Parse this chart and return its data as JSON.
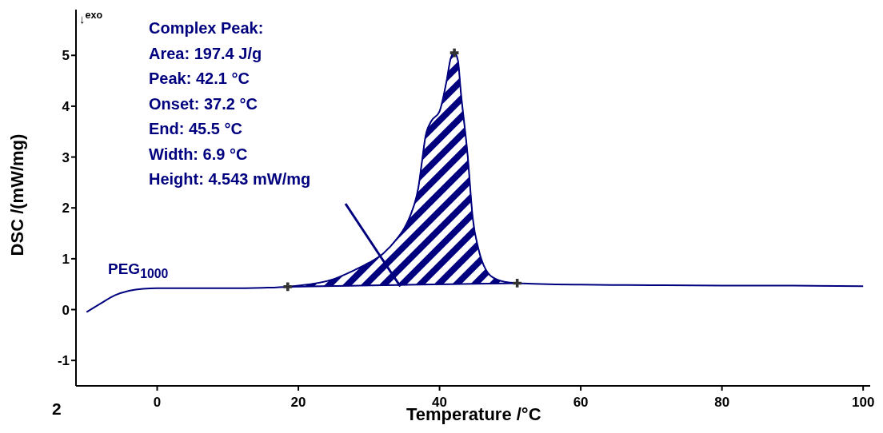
{
  "chart_data": {
    "type": "line",
    "xlabel": "Temperature /°C",
    "ylabel": "DSC /(mW/mg)",
    "xlim": [
      -11.5,
      101
    ],
    "xticks": [
      0,
      20,
      40,
      60,
      80,
      100
    ],
    "ylim": [
      -1.5,
      5.9
    ],
    "yticks": [
      -1,
      0,
      1,
      2,
      3,
      4,
      5
    ],
    "grid": false,
    "legend": false,
    "series": [
      {
        "name": "PEG$_{1000}$",
        "color": "#00007f",
        "marker": "none",
        "x": [
          -10,
          -8,
          -6,
          -4,
          -2,
          0,
          5,
          10,
          15,
          18.5,
          20,
          25,
          28,
          30,
          32,
          34,
          35,
          36,
          37,
          37.5,
          38,
          38.8,
          40,
          41,
          41.6,
          42.1,
          42.6,
          43,
          44,
          44.7,
          45.5,
          46.5,
          48,
          50,
          51,
          60,
          70,
          80,
          90,
          100
        ],
        "values": [
          -0.05,
          0.12,
          0.28,
          0.37,
          0.41,
          0.42,
          0.42,
          0.42,
          0.43,
          0.45,
          0.47,
          0.6,
          0.78,
          0.92,
          1.1,
          1.4,
          1.6,
          1.9,
          2.4,
          2.9,
          3.4,
          3.7,
          3.9,
          4.5,
          4.95,
          5.05,
          4.9,
          4.3,
          3.0,
          1.8,
          1.2,
          0.8,
          0.6,
          0.53,
          0.52,
          0.49,
          0.48,
          0.47,
          0.47,
          0.46
        ]
      },
      {
        "type": "area",
        "color": "#00007f",
        "x": [
          18.5,
          20,
          25,
          28,
          30,
          32,
          34,
          35,
          36,
          37,
          37.5,
          38,
          38.8,
          40,
          41,
          41.6,
          42.1,
          42.6,
          43,
          44,
          44.7,
          45.5,
          46.5,
          48,
          50,
          51
        ],
        "values": [
          0.45,
          0.47,
          0.6,
          0.78,
          0.92,
          1.1,
          1.4,
          1.6,
          1.9,
          2.4,
          2.9,
          3.4,
          3.7,
          3.9,
          4.5,
          4.95,
          5.05,
          4.9,
          4.3,
          3.0,
          1.8,
          1.2,
          0.8,
          0.6,
          0.53,
          0.52
        ]
      },
      {
        "type": "line",
        "color": "#00007f",
        "x": [
          18.5,
          51
        ],
        "values": [
          0.45,
          0.52
        ]
      },
      {
        "type": "scatter",
        "color": "#333333",
        "marker": "cross",
        "x": [
          18.5,
          42.1,
          51
        ],
        "values": [
          0.45,
          5.05,
          0.52
        ]
      }
    ],
    "annotations": [
      "↓$^{exo}$",
      "Complex Peak:",
      "Area: 197.4 J/g",
      "Peak: 42.1 °C",
      "Onset: 37.2 °C",
      "End: 45.5 °C",
      "Width: 6.9 °C",
      "Height: 4.543 mW/mg",
      "2"
    ]
  }
}
